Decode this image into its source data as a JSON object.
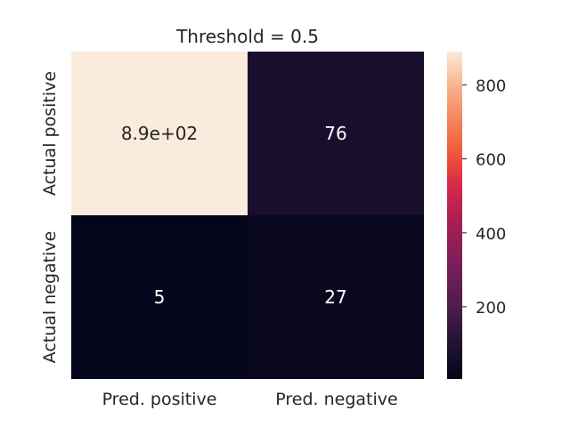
{
  "chart_data": {
    "type": "heatmap",
    "title": "Threshold = 0.5",
    "x_categories": [
      "Pred. positive",
      "Pred. negative"
    ],
    "y_categories": [
      "Actual positive",
      "Actual negative"
    ],
    "values": [
      [
        890,
        76
      ],
      [
        5,
        27
      ]
    ],
    "annotations": [
      [
        "8.9e+02",
        "76"
      ],
      [
        "5",
        "27"
      ]
    ],
    "colorbar": {
      "range": [
        5,
        890
      ],
      "ticks": [
        200,
        400,
        600,
        800
      ],
      "tick_labels": [
        "200",
        "400",
        "600",
        "800"
      ],
      "colormap": "rocket"
    },
    "xlabel": "",
    "ylabel": ""
  }
}
